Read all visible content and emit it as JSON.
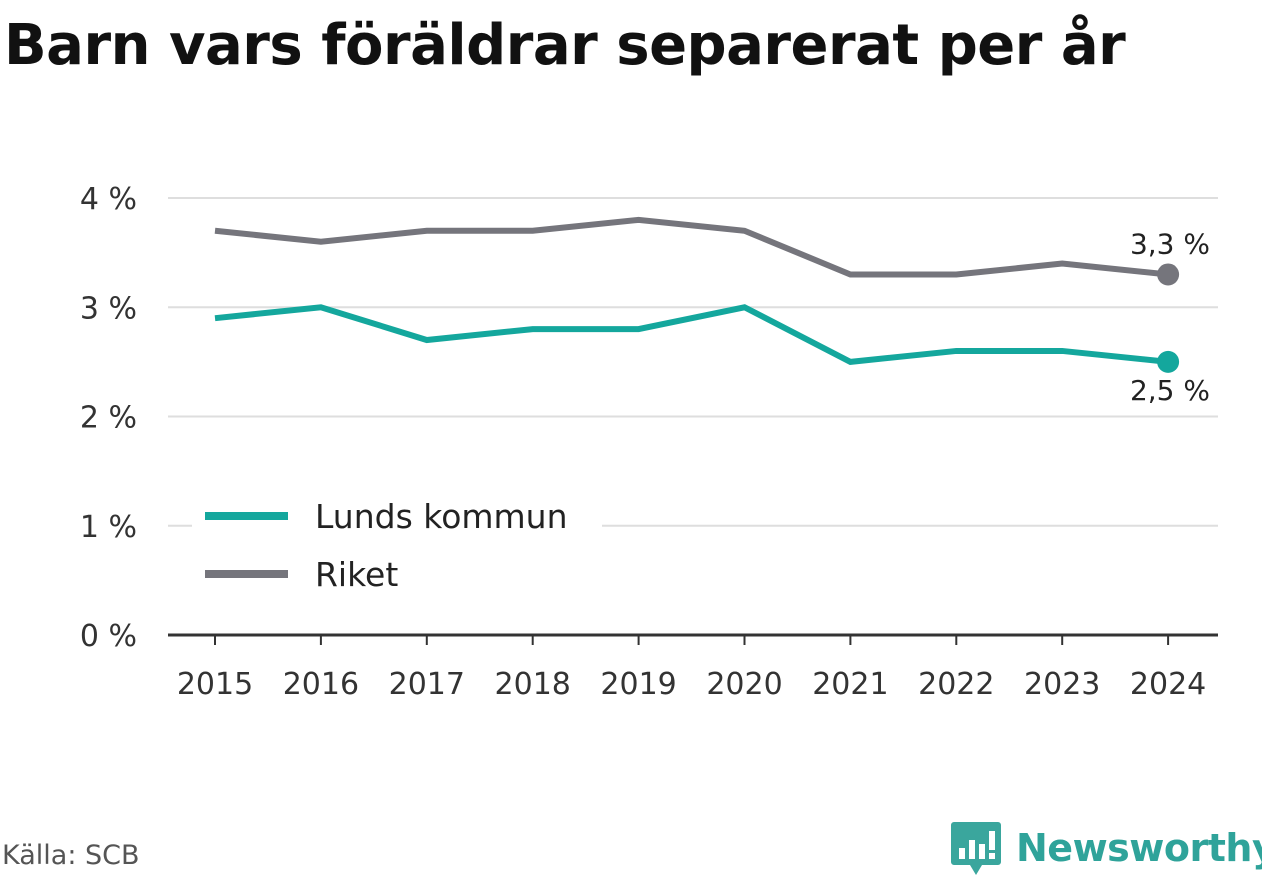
{
  "chart_data": {
    "type": "line",
    "title": "Barn vars föräldrar separerat per år",
    "xlabel": "",
    "ylabel": "",
    "x": [
      "2015",
      "2016",
      "2017",
      "2018",
      "2019",
      "2020",
      "2021",
      "2022",
      "2023",
      "2024"
    ],
    "ylim": [
      0,
      4
    ],
    "yticks": [
      0,
      1,
      2,
      3,
      4
    ],
    "ytick_labels": [
      "0 %",
      "1 %",
      "2 %",
      "3 %",
      "4 %"
    ],
    "grid": true,
    "legend_position": "bottom-left",
    "series": [
      {
        "name": "Lunds kommun",
        "color": "#14a79d",
        "values": [
          2.9,
          3.0,
          2.7,
          2.8,
          2.8,
          3.0,
          2.5,
          2.6,
          2.6,
          2.5
        ],
        "end_label": "2,5 %"
      },
      {
        "name": "Riket",
        "color": "#75757c",
        "values": [
          3.7,
          3.6,
          3.7,
          3.7,
          3.8,
          3.7,
          3.3,
          3.3,
          3.4,
          3.3
        ],
        "end_label": "3,3 %"
      }
    ]
  },
  "source": "Källa: SCB",
  "brand": {
    "name": "Newsworthy",
    "icon": "newsworthy-logo-icon",
    "color": "#2fa39a"
  }
}
